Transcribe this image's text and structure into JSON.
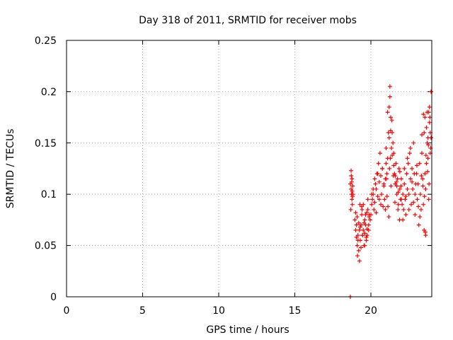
{
  "chart_data": {
    "type": "scatter",
    "title": "Day 318 of 2011, SRMTID for receiver mobs",
    "xlabel": "GPS time / hours",
    "ylabel": "SRMTID / TECUs",
    "xlim": [
      0,
      24
    ],
    "ylim": [
      0,
      0.25
    ],
    "x_ticks": [
      0,
      5,
      10,
      15,
      20
    ],
    "x_tick_labels": [
      "0",
      "5",
      "10",
      "15",
      "20"
    ],
    "y_ticks": [
      0,
      0.05,
      0.1,
      0.15,
      0.2,
      0.25
    ],
    "y_tick_labels": [
      "0",
      "0.05",
      "0.1",
      "0.15",
      "0.2",
      "0.25"
    ],
    "grid": true,
    "marker": "+",
    "series": [
      {
        "name": "SRMTID",
        "color": "#ff0000",
        "x": [
          18.65,
          18.65,
          18.7,
          18.72,
          18.75,
          18.78,
          18.8,
          18.82,
          18.7,
          18.76,
          18.68,
          18.74,
          18.8,
          18.71,
          18.77,
          18.95,
          19.0,
          19.05,
          19.1,
          19.15,
          19.2,
          19.25,
          19.3,
          19.35,
          19.4,
          19.45,
          19.5,
          19.55,
          19.6,
          19.65,
          19.7,
          19.75,
          19.8,
          19.85,
          19.9,
          19.95,
          19.0,
          19.1,
          19.2,
          19.3,
          19.4,
          19.5,
          19.6,
          19.7,
          19.8,
          19.05,
          19.15,
          19.25,
          19.35,
          19.45,
          19.55,
          19.65,
          19.75,
          19.85,
          19.12,
          19.28,
          19.42,
          19.58,
          19.72,
          19.88,
          20.0,
          20.05,
          20.1,
          20.15,
          20.2,
          20.25,
          20.3,
          20.35,
          20.4,
          20.45,
          20.5,
          20.55,
          20.6,
          20.65,
          20.7,
          20.75,
          20.8,
          20.85,
          20.9,
          20.95,
          20.05,
          20.15,
          20.25,
          20.35,
          20.45,
          20.55,
          20.65,
          20.75,
          20.85,
          20.95,
          21.0,
          21.05,
          21.1,
          21.15,
          21.2,
          21.25,
          21.3,
          21.35,
          21.4,
          21.45,
          21.5,
          21.55,
          21.6,
          21.65,
          21.7,
          21.75,
          21.8,
          21.85,
          21.9,
          21.95,
          21.0,
          21.1,
          21.2,
          21.3,
          21.4,
          21.5,
          21.6,
          21.7,
          21.8,
          21.9,
          21.02,
          21.06,
          21.12,
          21.18,
          21.22,
          21.28,
          21.32,
          21.38,
          21.48,
          21.58,
          21.68,
          21.78,
          21.88,
          21.98,
          21.25,
          22.0,
          22.05,
          22.1,
          22.15,
          22.2,
          22.25,
          22.3,
          22.35,
          22.4,
          22.45,
          22.5,
          22.55,
          22.6,
          22.65,
          22.7,
          22.75,
          22.8,
          22.85,
          22.9,
          22.95,
          22.0,
          22.1,
          22.2,
          22.3,
          22.4,
          22.5,
          22.6,
          22.7,
          22.8,
          22.9,
          23.0,
          23.05,
          23.1,
          23.15,
          23.2,
          23.25,
          23.3,
          23.35,
          23.4,
          23.45,
          23.5,
          23.55,
          23.6,
          23.65,
          23.7,
          23.75,
          23.8,
          23.85,
          23.9,
          23.95,
          23.02,
          23.12,
          23.22,
          23.32,
          23.42,
          23.52,
          23.62,
          23.72,
          23.82,
          23.92,
          23.5,
          23.6,
          23.7,
          23.8,
          23.9,
          23.55,
          23.65,
          23.75,
          23.85,
          23.95,
          23.58,
          23.88,
          23.45,
          23.35,
          23.78
        ],
        "y": [
          0.0,
          0.11,
          0.105,
          0.1,
          0.095,
          0.09,
          0.108,
          0.1,
          0.123,
          0.115,
          0.085,
          0.112,
          0.098,
          0.118,
          0.103,
          0.075,
          0.065,
          0.058,
          0.05,
          0.06,
          0.045,
          0.035,
          0.055,
          0.07,
          0.08,
          0.06,
          0.065,
          0.05,
          0.075,
          0.07,
          0.055,
          0.06,
          0.085,
          0.065,
          0.08,
          0.075,
          0.082,
          0.078,
          0.072,
          0.068,
          0.088,
          0.09,
          0.062,
          0.058,
          0.095,
          0.07,
          0.055,
          0.065,
          0.048,
          0.06,
          0.072,
          0.08,
          0.066,
          0.07,
          0.04,
          0.09,
          0.085,
          0.05,
          0.082,
          0.078,
          0.08,
          0.09,
          0.095,
          0.1,
          0.085,
          0.092,
          0.11,
          0.105,
          0.12,
          0.098,
          0.13,
          0.112,
          0.14,
          0.118,
          0.1,
          0.125,
          0.088,
          0.108,
          0.095,
          0.115,
          0.1,
          0.105,
          0.115,
          0.082,
          0.12,
          0.095,
          0.09,
          0.125,
          0.11,
          0.085,
          0.13,
          0.12,
          0.135,
          0.16,
          0.185,
          0.205,
          0.175,
          0.145,
          0.16,
          0.15,
          0.14,
          0.12,
          0.11,
          0.13,
          0.1,
          0.115,
          0.09,
          0.125,
          0.105,
          0.095,
          0.145,
          0.18,
          0.155,
          0.162,
          0.138,
          0.128,
          0.118,
          0.108,
          0.102,
          0.122,
          0.115,
          0.098,
          0.088,
          0.078,
          0.125,
          0.135,
          0.108,
          0.172,
          0.118,
          0.092,
          0.112,
          0.085,
          0.075,
          0.108,
          0.195,
          0.095,
          0.09,
          0.1,
          0.085,
          0.11,
          0.095,
          0.08,
          0.12,
          0.105,
          0.13,
          0.1,
          0.14,
          0.115,
          0.09,
          0.125,
          0.105,
          0.15,
          0.12,
          0.08,
          0.11,
          0.115,
          0.075,
          0.125,
          0.098,
          0.135,
          0.085,
          0.145,
          0.112,
          0.092,
          0.1,
          0.12,
          0.095,
          0.11,
          0.07,
          0.13,
          0.1,
          0.085,
          0.14,
          0.115,
          0.09,
          0.16,
          0.12,
          0.105,
          0.13,
          0.15,
          0.135,
          0.095,
          0.17,
          0.14,
          0.155,
          0.128,
          0.088,
          0.078,
          0.118,
          0.108,
          0.098,
          0.138,
          0.122,
          0.11,
          0.145,
          0.065,
          0.06,
          0.18,
          0.18,
          0.16,
          0.175,
          0.165,
          0.155,
          0.185,
          0.2,
          0.063,
          0.175,
          0.178,
          0.158,
          0.148
        ]
      }
    ]
  }
}
